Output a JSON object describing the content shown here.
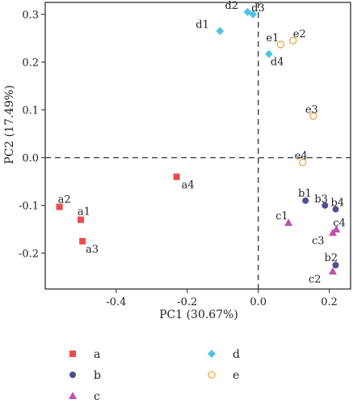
{
  "chart_data": {
    "type": "scatter",
    "xlabel": "PC1 (30.67%)",
    "ylabel": "PC2 (17.49%)",
    "xlim": [
      -0.6,
      0.26
    ],
    "ylim": [
      -0.275,
      0.325
    ],
    "xticks": [
      "-0.4",
      "-0.2",
      "0.0",
      "0.2"
    ],
    "xtick_values": [
      -0.4,
      -0.2,
      0.0,
      0.2
    ],
    "yticks": [
      "-0.2",
      "-0.1",
      "0.0",
      "0.1",
      "0.2",
      "0.3"
    ],
    "ytick_values": [
      -0.2,
      -0.1,
      0.0,
      0.1,
      0.2,
      0.3
    ],
    "reference_lines": {
      "x": 0.0,
      "y": 0.0,
      "style": "dashed"
    },
    "grid": false,
    "legend_position": "bottom",
    "series": [
      {
        "name": "a",
        "marker": "square",
        "color": "#ee4b4b",
        "points": [
          {
            "label": "a1",
            "x": -0.5,
            "y": -0.13
          },
          {
            "label": "a2",
            "x": -0.56,
            "y": -0.103
          },
          {
            "label": "a3",
            "x": -0.495,
            "y": -0.175
          },
          {
            "label": "a4",
            "x": -0.23,
            "y": -0.04
          }
        ]
      },
      {
        "name": "b",
        "marker": "circle",
        "color": "#4e4f96",
        "points": [
          {
            "label": "b1",
            "x": 0.133,
            "y": -0.09
          },
          {
            "label": "b2",
            "x": 0.218,
            "y": -0.225
          },
          {
            "label": "b3",
            "x": 0.188,
            "y": -0.1
          },
          {
            "label": "b4",
            "x": 0.218,
            "y": -0.108
          }
        ]
      },
      {
        "name": "c",
        "marker": "triangle",
        "color": "#c04fae",
        "points": [
          {
            "label": "c1",
            "x": 0.085,
            "y": -0.136
          },
          {
            "label": "c2",
            "x": 0.21,
            "y": -0.238
          },
          {
            "label": "c3",
            "x": 0.21,
            "y": -0.157
          },
          {
            "label": "c4",
            "x": 0.22,
            "y": -0.15
          }
        ]
      },
      {
        "name": "d",
        "marker": "diamond",
        "color": "#4fc3e6",
        "points": [
          {
            "label": "d1",
            "x": -0.108,
            "y": 0.265
          },
          {
            "label": "d2",
            "x": -0.03,
            "y": 0.305
          },
          {
            "label": "d3",
            "x": -0.015,
            "y": 0.3
          },
          {
            "label": "d4",
            "x": 0.03,
            "y": 0.217
          }
        ]
      },
      {
        "name": "e",
        "marker": "open-circle",
        "color": "#e8a94a",
        "points": [
          {
            "label": "e1",
            "x": 0.063,
            "y": 0.237
          },
          {
            "label": "e2",
            "x": 0.098,
            "y": 0.245
          },
          {
            "label": "e3",
            "x": 0.155,
            "y": 0.087
          },
          {
            "label": "e4",
            "x": 0.125,
            "y": -0.01
          }
        ]
      }
    ]
  }
}
